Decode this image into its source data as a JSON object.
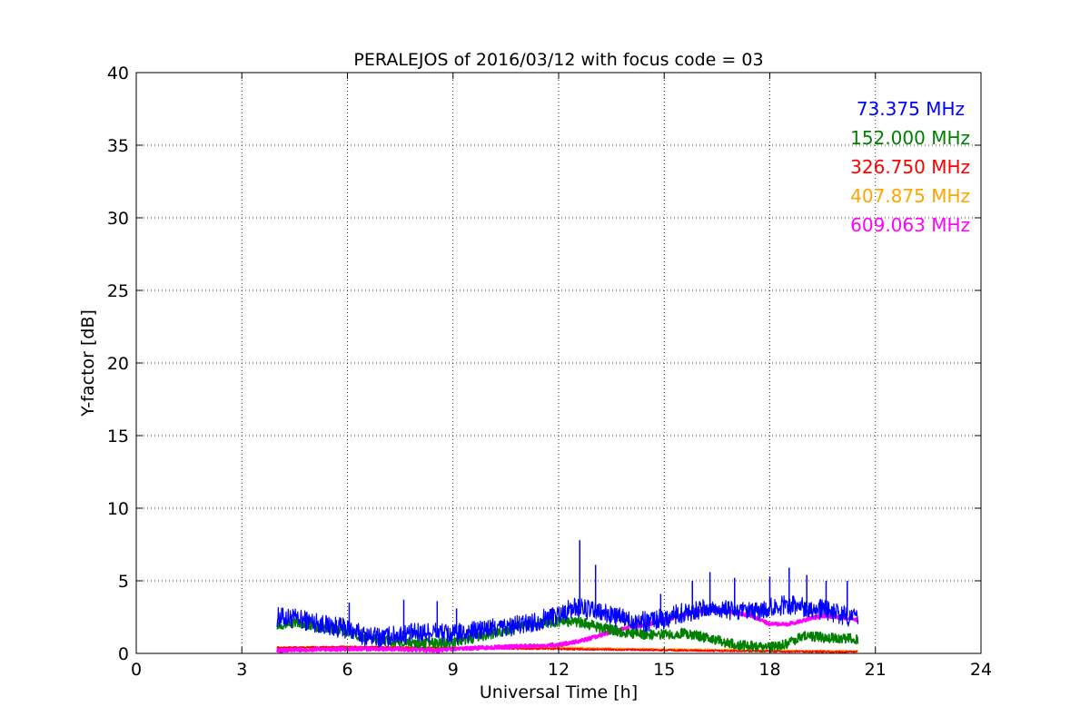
{
  "chart_data": {
    "type": "line",
    "title": "PERALEJOS of 2016/03/12 with focus code = 03",
    "xlabel": "Universal Time [h]",
    "ylabel": "Y-factor [dB]",
    "xlim": [
      0,
      24
    ],
    "ylim": [
      0,
      40
    ],
    "xticks": [
      "0",
      "3",
      "6",
      "9",
      "12",
      "15",
      "18",
      "21",
      "24"
    ],
    "yticks": [
      "0",
      "5",
      "10",
      "15",
      "20",
      "25",
      "30",
      "35",
      "40"
    ],
    "grid": true,
    "legend_position": "top-right",
    "series": [
      {
        "name": "73.375 MHz",
        "color": "#0000ff",
        "x": [
          4.0,
          4.5,
          5.0,
          5.5,
          6.0,
          6.5,
          7.0,
          7.5,
          8.0,
          8.5,
          9.0,
          9.5,
          10.0,
          10.5,
          11.0,
          11.5,
          12.0,
          12.5,
          13.0,
          13.5,
          14.0,
          14.5,
          15.0,
          15.5,
          16.0,
          16.5,
          17.0,
          17.5,
          18.0,
          18.5,
          19.0,
          19.5,
          20.0,
          20.5
        ],
        "values": [
          2.5,
          2.4,
          2.2,
          1.9,
          1.7,
          1.2,
          1.1,
          1.3,
          1.4,
          1.5,
          1.3,
          1.5,
          1.7,
          1.8,
          2.0,
          2.3,
          2.7,
          3.2,
          2.9,
          2.6,
          2.3,
          2.2,
          2.4,
          2.8,
          3.0,
          3.1,
          2.9,
          2.8,
          3.1,
          3.4,
          3.2,
          3.0,
          2.7,
          2.4
        ],
        "spikes": [
          [
            6.05,
            3.5
          ],
          [
            7.6,
            3.7
          ],
          [
            8.55,
            3.6
          ],
          [
            9.1,
            3.1
          ],
          [
            12.6,
            7.8
          ],
          [
            13.05,
            6.1
          ],
          [
            14.9,
            4.1
          ],
          [
            15.8,
            5.0
          ],
          [
            16.3,
            5.6
          ],
          [
            17.0,
            5.2
          ],
          [
            18.0,
            5.3
          ],
          [
            18.55,
            5.9
          ],
          [
            19.05,
            5.4
          ],
          [
            19.6,
            5.0
          ],
          [
            20.2,
            5.0
          ]
        ]
      },
      {
        "name": "152.000 MHz",
        "color": "#008000",
        "x": [
          4.0,
          4.5,
          5.0,
          5.5,
          6.0,
          6.5,
          7.0,
          7.5,
          8.0,
          8.5,
          9.0,
          9.5,
          10.0,
          10.5,
          11.0,
          11.5,
          12.0,
          12.5,
          13.0,
          13.5,
          14.0,
          14.5,
          15.0,
          15.5,
          16.0,
          16.5,
          17.0,
          17.5,
          18.0,
          18.5,
          19.0,
          19.5,
          20.0,
          20.5
        ],
        "values": [
          2.0,
          2.1,
          1.9,
          1.7,
          1.5,
          1.1,
          0.9,
          0.8,
          0.7,
          0.7,
          0.8,
          1.0,
          1.3,
          1.6,
          1.9,
          2.1,
          2.2,
          2.2,
          1.9,
          1.6,
          1.4,
          1.3,
          1.3,
          1.4,
          1.2,
          0.9,
          0.6,
          0.5,
          0.4,
          0.7,
          1.2,
          1.1,
          1.0,
          1.0
        ]
      },
      {
        "name": "326.750 MHz",
        "color": "#ff0000",
        "x": [
          4.0,
          6.0,
          8.0,
          10.0,
          12.0,
          14.0,
          16.0,
          18.0,
          20.5
        ],
        "values": [
          0.4,
          0.45,
          0.4,
          0.35,
          0.3,
          0.25,
          0.2,
          0.15,
          0.1
        ]
      },
      {
        "name": "407.875 MHz",
        "color": "#ffa500",
        "x": [
          4.0,
          6.0,
          8.0,
          10.0,
          12.0,
          13.0,
          14.0,
          16.0,
          18.0,
          20.5
        ],
        "values": [
          0.3,
          0.35,
          0.35,
          0.4,
          0.4,
          0.35,
          0.3,
          0.25,
          0.2,
          0.15
        ]
      },
      {
        "name": "609.063 MHz",
        "color": "#ff00ff",
        "x": [
          4.0,
          5.0,
          6.0,
          7.0,
          8.0,
          8.5,
          9.0,
          10.0,
          11.0,
          12.0,
          12.5,
          13.0,
          13.5,
          14.0,
          14.5,
          15.0,
          15.5,
          16.0,
          16.5,
          17.0,
          17.5,
          18.0,
          18.5,
          19.0,
          19.5,
          20.0,
          20.5
        ],
        "values": [
          0.2,
          0.25,
          0.3,
          0.3,
          0.25,
          0.2,
          0.3,
          0.4,
          0.5,
          0.6,
          0.8,
          1.1,
          1.5,
          1.8,
          2.0,
          2.3,
          2.6,
          2.9,
          3.0,
          2.8,
          2.6,
          2.0,
          2.0,
          2.3,
          2.6,
          2.5,
          2.3
        ]
      }
    ]
  }
}
